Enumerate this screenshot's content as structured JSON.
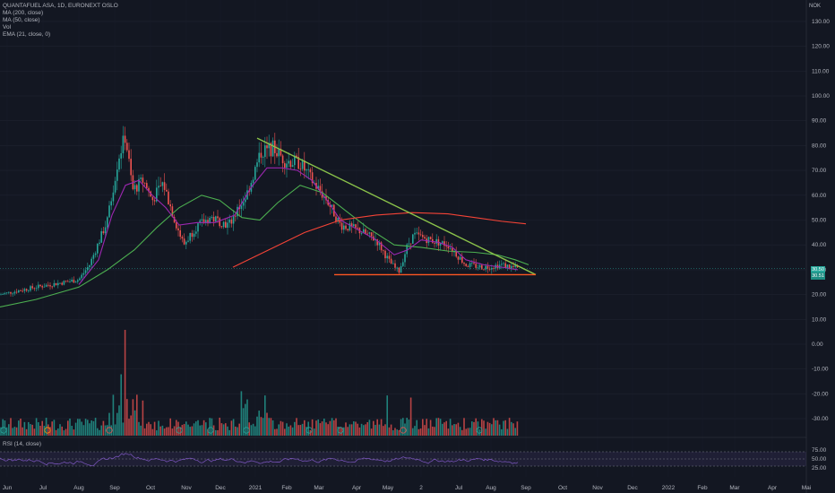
{
  "legend": {
    "symbol": "QUANTAFUEL ASA, 1D, EURONEXT OSLO",
    "ma200": "MA (200, close)",
    "ma50": "MA (50, close)",
    "vol": "Vol",
    "ema": "EMA (21, close, 0)",
    "rsi": "RSI (14, close)"
  },
  "currency": "NOK",
  "last_price": "30.50",
  "countdown": "30.51",
  "colors": {
    "background": "#131722",
    "up": "#26a69a",
    "down": "#ef5350",
    "ma200": "#f44336",
    "ma50": "#4caf50",
    "ema21": "#9c27b0",
    "trendline": "#8bc34a",
    "support": "#ff5722",
    "rsi": "#7e57c2"
  },
  "chart_data": {
    "type": "candlestick",
    "x_labels": [
      "Jun",
      "Jul",
      "Aug",
      "Sep",
      "Oct",
      "Nov",
      "Dec",
      "2021",
      "Feb",
      "Mar",
      "Apr",
      "May",
      "2",
      "Jul",
      "Aug",
      "Sep",
      "Oct",
      "Nov",
      "Dec",
      "2022",
      "Feb",
      "Mar",
      "Apr",
      "Mai"
    ],
    "price_axis": [
      "130.00",
      "120.00",
      "110.00",
      "100.00",
      "90.00",
      "80.00",
      "70.00",
      "60.00",
      "50.00",
      "40.00",
      "30.00",
      "20.00",
      "10.00",
      "0.00",
      "-10.00",
      "-20.00",
      "-30.00"
    ],
    "rsi_axis": [
      "75.00",
      "50.00",
      "25.00"
    ],
    "ylim": [
      -36,
      136
    ],
    "price_series": [
      {
        "date": "Jun",
        "value": 20
      },
      {
        "date": "Jul",
        "value": 23
      },
      {
        "date": "Aug",
        "value": 26
      },
      {
        "date": "Sep",
        "value": 68
      },
      {
        "date": "Oct",
        "value": 62
      },
      {
        "date": "Nov",
        "value": 44
      },
      {
        "date": "Dec",
        "value": 49
      },
      {
        "date": "2021",
        "value": 72
      },
      {
        "date": "Feb",
        "value": 70
      },
      {
        "date": "Mar",
        "value": 56
      },
      {
        "date": "Apr",
        "value": 46
      },
      {
        "date": "May",
        "value": 31
      },
      {
        "date": "2",
        "value": 43
      },
      {
        "date": "Jul",
        "value": 40
      },
      {
        "date": "Aug",
        "value": 32
      },
      {
        "date": "Sep",
        "value": 30.5
      }
    ],
    "series": [
      {
        "name": "MA (200, close)",
        "points": [
          {
            "x": "2021",
            "y": 31
          },
          {
            "x": "May",
            "y": 52
          },
          {
            "x": "Sep",
            "y": 48
          }
        ]
      },
      {
        "name": "MA (50, close)",
        "points": [
          {
            "x": "Jun",
            "y": 15
          },
          {
            "x": "Oct",
            "y": 39
          },
          {
            "x": "Dec",
            "y": 51
          },
          {
            "x": "2021",
            "y": 55
          },
          {
            "x": "Mar",
            "y": 64
          },
          {
            "x": "Aug",
            "y": 37
          },
          {
            "x": "Sep",
            "y": 33
          }
        ]
      },
      {
        "name": "EMA (21, close, 0)",
        "points": [
          {
            "x": "Aug",
            "y": 24
          },
          {
            "x": "Sep",
            "y": 62
          },
          {
            "x": "Nov",
            "y": 48
          },
          {
            "x": "2021",
            "y": 70
          },
          {
            "x": "Mar",
            "y": 56
          },
          {
            "x": "Jul",
            "y": 40
          },
          {
            "x": "Sep",
            "y": 30
          }
        ]
      }
    ],
    "drawings": {
      "trendline": [
        {
          "x": "Jan",
          "y": 83
        },
        {
          "x": "Sep",
          "y": 28
        }
      ],
      "support": {
        "y": 28,
        "from": "Apr",
        "to": "Sep"
      }
    },
    "volume_peaks": [
      {
        "x": "Sep",
        "ratio": 1.0
      },
      {
        "x": "Sep",
        "ratio": 0.58
      },
      {
        "x": "2021",
        "ratio": 0.42
      },
      {
        "x": "Feb",
        "ratio": 0.3
      },
      {
        "x": "May",
        "ratio": 0.38
      }
    ],
    "rsi": {
      "upper": 70,
      "lower": 30,
      "last": 44
    }
  }
}
